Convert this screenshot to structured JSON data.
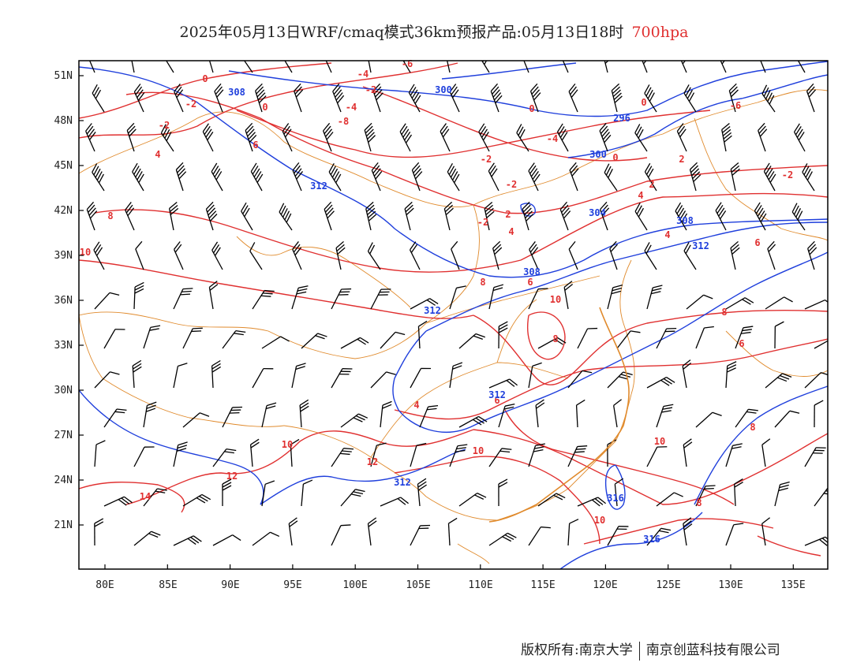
{
  "title": {
    "text": "2025年05月13日WRF/cmaq模式36km预报产品:05月13日18时",
    "level": "700hpa"
  },
  "colors": {
    "temperature": "#e03030",
    "geopotential": "#1f3fdc",
    "boundary": "#e08a2c",
    "wind": "#000000",
    "title_level": "#e03030"
  },
  "axes": {
    "lat_labels": [
      "51N",
      "48N",
      "45N",
      "42N",
      "39N",
      "36N",
      "33N",
      "30N",
      "27N",
      "24N",
      "21N"
    ],
    "lon_labels": [
      "80E",
      "85E",
      "90E",
      "95E",
      "100E",
      "105E",
      "110E",
      "115E",
      "120E",
      "125E",
      "130E",
      "135E"
    ]
  },
  "temperature_labels": [
    "-6",
    "-4",
    "-2",
    "0",
    "-2",
    "0",
    "-2",
    "-4",
    "-8",
    "0",
    "0",
    "-6",
    "-4",
    "-2",
    "-2",
    "0",
    "2",
    "-2",
    "2",
    "4",
    "2",
    "4",
    "-2",
    "4",
    "6",
    "4",
    "8",
    "10",
    "8",
    "6",
    "10",
    "8",
    "6",
    "8",
    "4",
    "6",
    "10",
    "10",
    "12",
    "12",
    "14",
    "10",
    "10",
    "8",
    "8",
    "6"
  ],
  "height_labels": [
    "308",
    "300",
    "296",
    "300",
    "312",
    "304",
    "308",
    "312",
    "308",
    "312",
    "312",
    "312",
    "316",
    "316"
  ],
  "footer": {
    "left": "版权所有:南京大学",
    "right": "南京创蓝科技有限公司"
  }
}
